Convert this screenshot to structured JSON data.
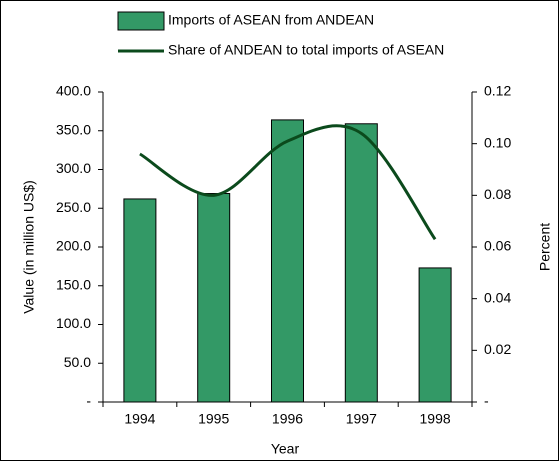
{
  "chart_data": {
    "type": "bar",
    "categories": [
      "1994",
      "1995",
      "1996",
      "1997",
      "1998"
    ],
    "series": [
      {
        "name": "Imports of ASEAN from ANDEAN",
        "type": "bar",
        "color": "#339966",
        "values": [
          262,
          269,
          364,
          359,
          173
        ]
      },
      {
        "name": "Share of ANDEAN to total imports of ASEAN",
        "type": "line",
        "axis": "y2",
        "color": "#0b4a1c",
        "values": [
          0.096,
          0.08,
          0.101,
          0.104,
          0.063
        ]
      }
    ],
    "xlabel": "Year",
    "ylabel": "Value (in million US$)",
    "y2label": "Percent",
    "ylim": [
      0,
      400
    ],
    "yticks": [
      {
        "value": 0,
        "label": "-"
      },
      {
        "value": 50,
        "label": "50.0"
      },
      {
        "value": 100,
        "label": "100.0"
      },
      {
        "value": 150,
        "label": "150.0"
      },
      {
        "value": 200,
        "label": "200.0"
      },
      {
        "value": 250,
        "label": "250.0"
      },
      {
        "value": 300,
        "label": "300.0"
      },
      {
        "value": 350,
        "label": "350.0"
      },
      {
        "value": 400,
        "label": "400.0"
      }
    ],
    "y2lim": [
      0,
      0.12
    ],
    "y2ticks": [
      {
        "value": 0,
        "label": "-"
      },
      0.02,
      0.04,
      0.06,
      0.08,
      {
        "value": 0.1,
        "label": "0.10"
      },
      0.12
    ],
    "legend": "top",
    "grid": false
  }
}
